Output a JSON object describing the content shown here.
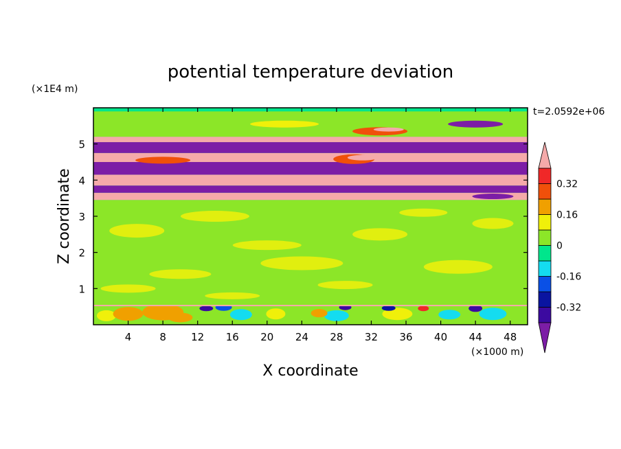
{
  "chart_data": {
    "type": "heatmap",
    "title": "potential temperature deviation",
    "xlabel": "X coordinate",
    "ylabel": "Z coordinate",
    "x_unit": "(×1000 m)",
    "y_unit": "(×1E4 m)",
    "time_label": "t=2.0592e+06",
    "xlim": [
      0,
      50
    ],
    "ylim": [
      0,
      6
    ],
    "x_ticks": [
      4,
      8,
      12,
      16,
      20,
      24,
      28,
      32,
      36,
      40,
      44,
      48
    ],
    "y_ticks": [
      1,
      2,
      3,
      4,
      5
    ],
    "colorbar": {
      "levels": [
        -0.4,
        -0.32,
        -0.24,
        -0.16,
        -0.08,
        0,
        0.08,
        0.16,
        0.24,
        0.32,
        0.4
      ],
      "labels": [
        "-0.32",
        "-0.16",
        "0",
        "0.16",
        "0.32"
      ],
      "label_values": [
        -0.32,
        -0.16,
        0,
        0.16,
        0.32
      ],
      "colors": [
        "#7c1da6",
        "#3c0aa0",
        "#0a14a0",
        "#0a50e6",
        "#14dcf0",
        "#00e68c",
        "#8ce628",
        "#f0f00a",
        "#f0a000",
        "#f0500a",
        "#f02828",
        "#f5aaaa"
      ],
      "extend": "both"
    },
    "bands": [
      {
        "z": [
          0.0,
          0.55
        ],
        "value": "mixed",
        "description_values": [
          -0.08,
          0.0,
          0.08,
          0.16
        ]
      },
      {
        "z": [
          0.55,
          3.45
        ],
        "value": 0.04
      },
      {
        "z": [
          3.45,
          3.65
        ],
        "value": 0.45
      },
      {
        "z": [
          3.65,
          3.85
        ],
        "value": -0.45
      },
      {
        "z": [
          3.85,
          4.15
        ],
        "value": 0.45
      },
      {
        "z": [
          4.15,
          4.5
        ],
        "value": -0.45
      },
      {
        "z": [
          4.5,
          4.75
        ],
        "value": 0.45
      },
      {
        "z": [
          4.75,
          5.05
        ],
        "value": -0.45
      },
      {
        "z": [
          5.05,
          5.2
        ],
        "value": 0.45
      },
      {
        "z": [
          5.2,
          5.9
        ],
        "value": 0.02
      }
    ]
  }
}
